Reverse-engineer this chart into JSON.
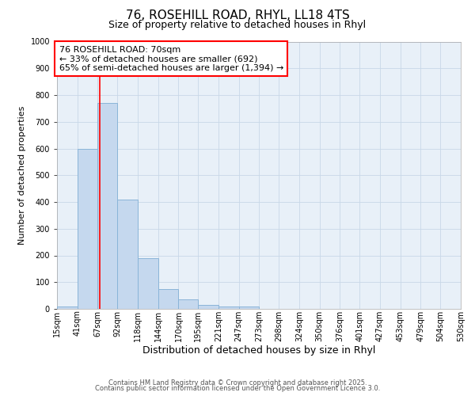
{
  "title_line1": "76, ROSEHILL ROAD, RHYL, LL18 4TS",
  "title_line2": "Size of property relative to detached houses in Rhyl",
  "xlabel": "Distribution of detached houses by size in Rhyl",
  "ylabel": "Number of detached properties",
  "bin_edges": [
    15,
    41,
    67,
    92,
    118,
    144,
    170,
    195,
    221,
    247,
    273,
    298,
    324,
    350,
    376,
    401,
    427,
    453,
    479,
    504,
    530
  ],
  "bar_heights": [
    10,
    600,
    770,
    410,
    190,
    75,
    35,
    15,
    10,
    10,
    0,
    0,
    0,
    0,
    0,
    0,
    0,
    0,
    0,
    0
  ],
  "bar_color": "#c5d8ee",
  "bar_edge_color": "#8ab4d8",
  "property_size": 70,
  "property_line_color": "red",
  "annotation_text": "76 ROSEHILL ROAD: 70sqm\n← 33% of detached houses are smaller (692)\n65% of semi-detached houses are larger (1,394) →",
  "annotation_box_color": "white",
  "annotation_box_edge_color": "red",
  "ylim": [
    0,
    1000
  ],
  "yticks": [
    0,
    100,
    200,
    300,
    400,
    500,
    600,
    700,
    800,
    900,
    1000
  ],
  "footer_line1": "Contains HM Land Registry data © Crown copyright and database right 2025.",
  "footer_line2": "Contains public sector information licensed under the Open Government Licence 3.0.",
  "grid_color": "#c8d8e8",
  "background_color": "#e8f0f8",
  "title1_fontsize": 11,
  "title2_fontsize": 9,
  "xlabel_fontsize": 9,
  "ylabel_fontsize": 8,
  "tick_fontsize": 7,
  "annotation_fontsize": 8,
  "footer_fontsize": 6
}
